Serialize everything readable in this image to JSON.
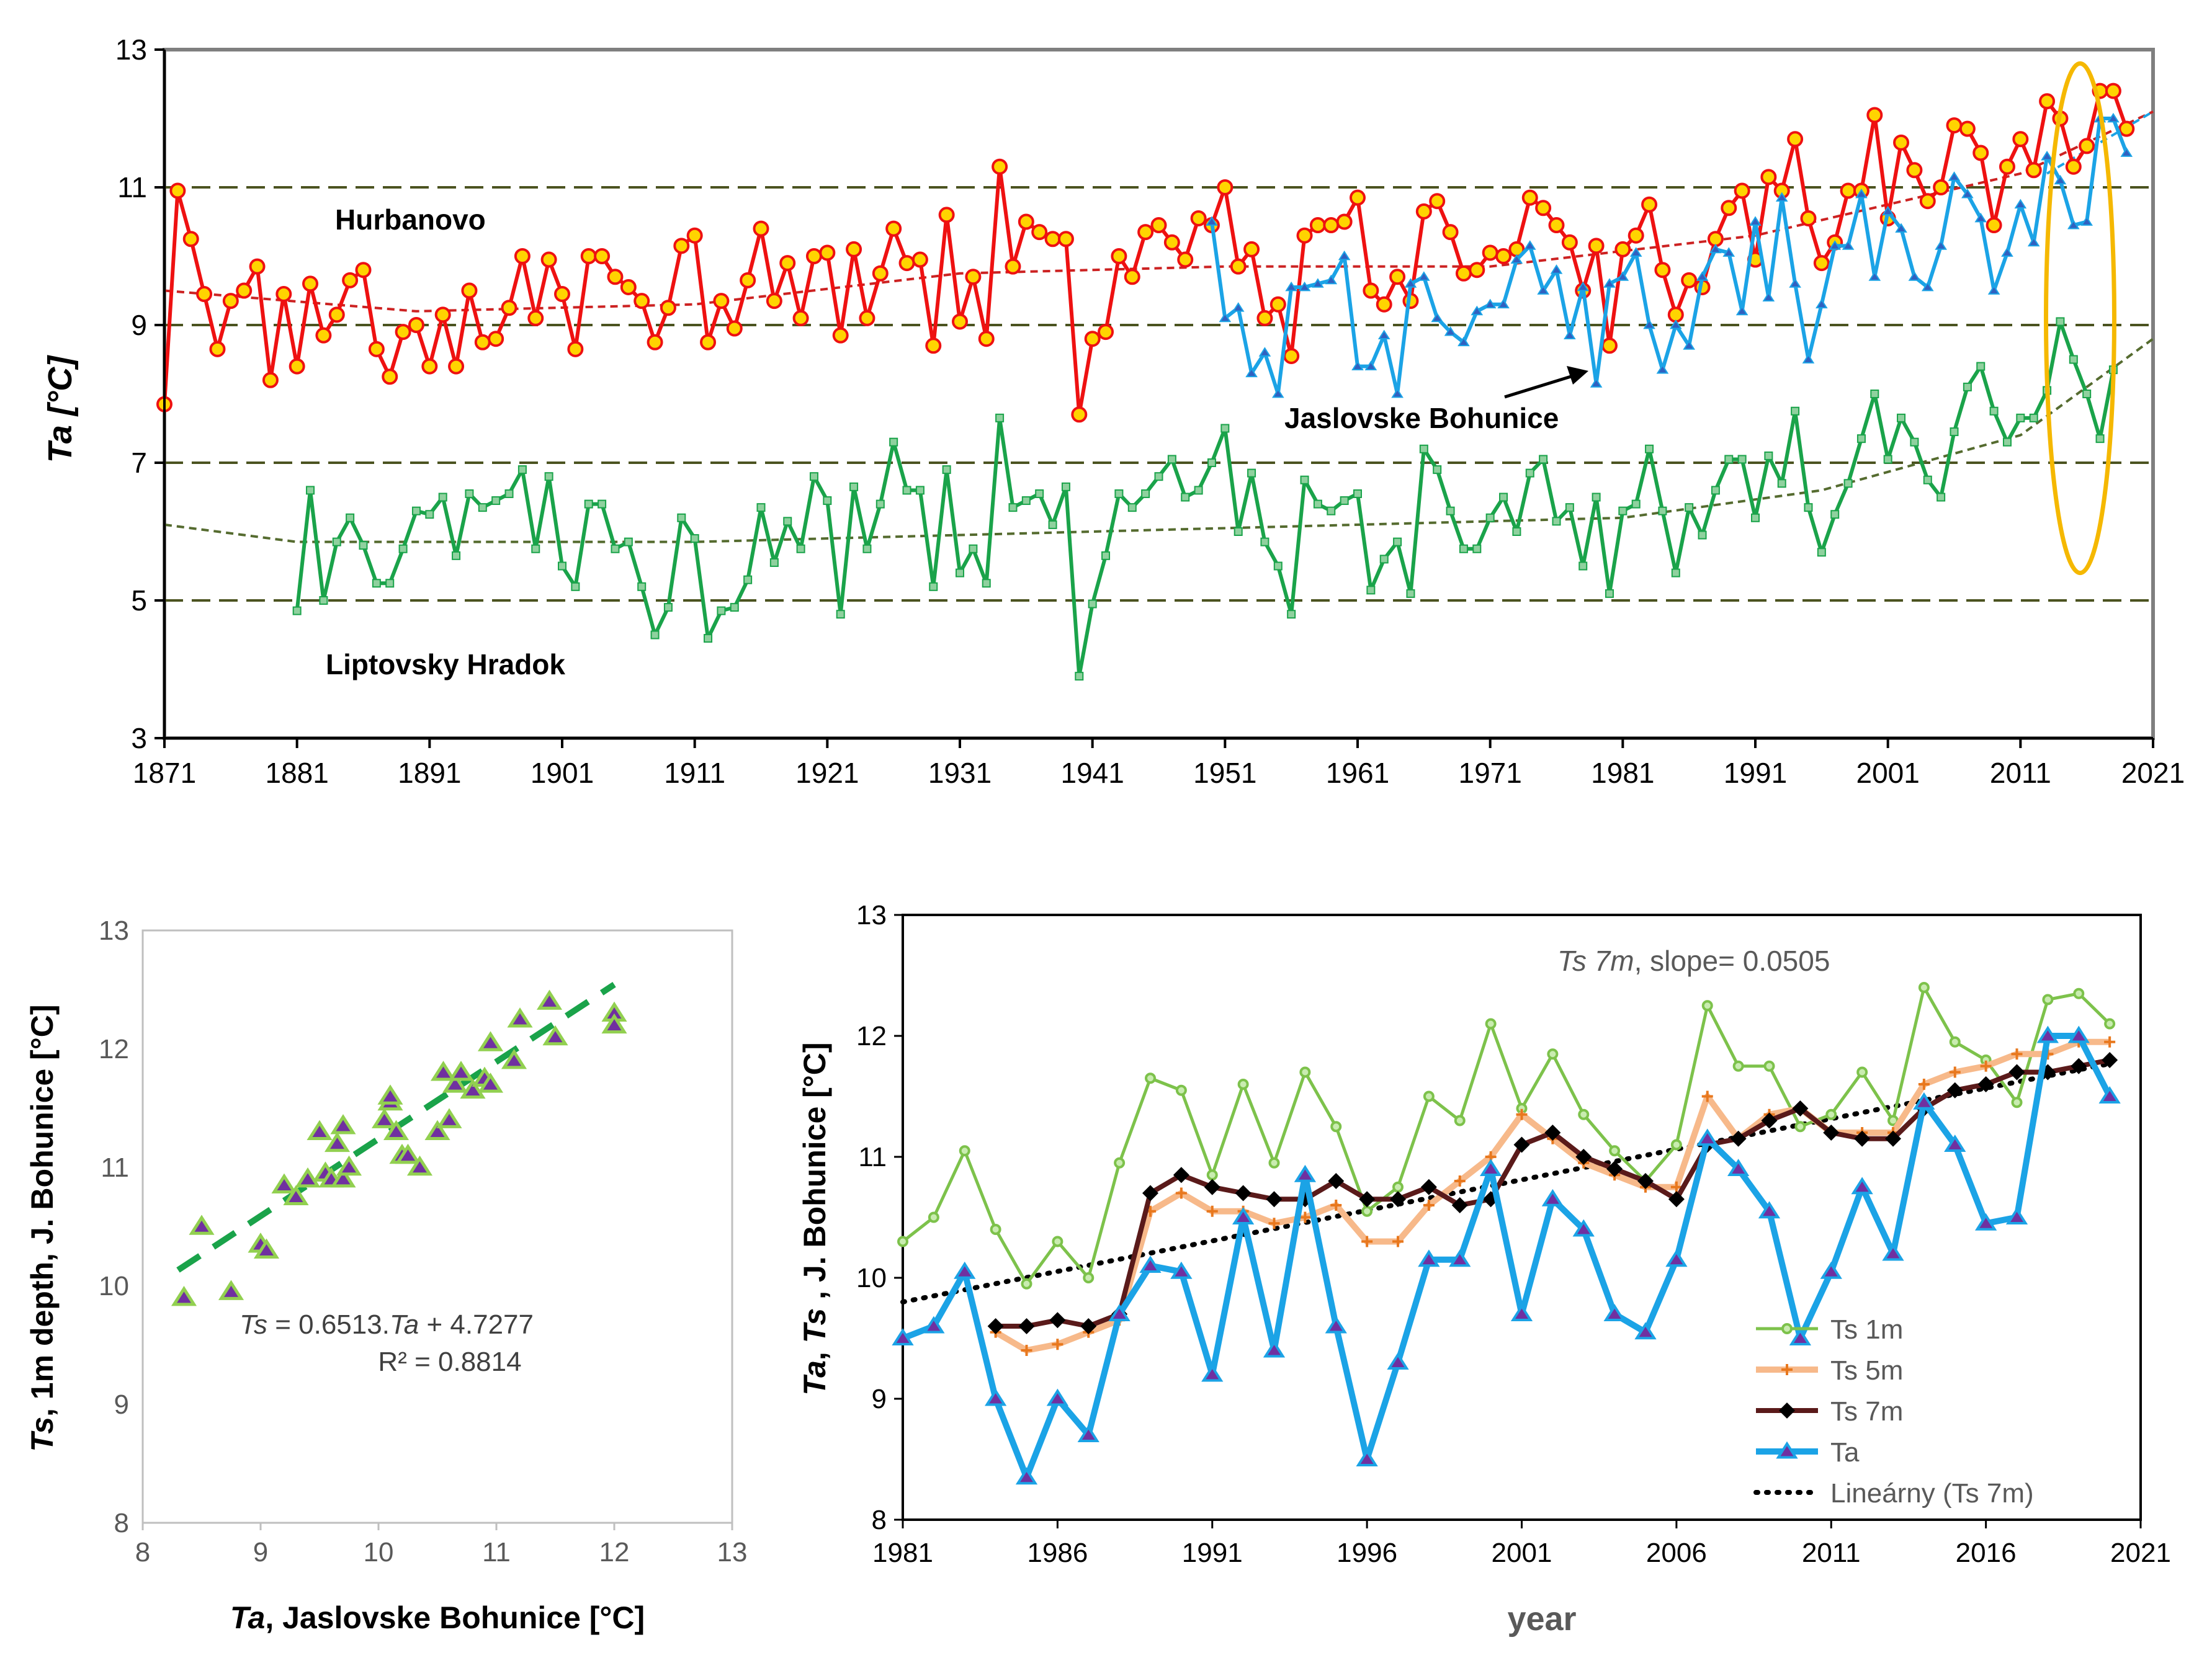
{
  "chart_data": [
    {
      "type": "line",
      "ylabel": "Ta [°C]",
      "xlim": [
        1871,
        2021
      ],
      "ylim": [
        3,
        13
      ],
      "x_ticks": [
        "1871",
        "1881",
        "1891",
        "1901",
        "1911",
        "1921",
        "1931",
        "1941",
        "1951",
        "1961",
        "1971",
        "1981",
        "1991",
        "2001",
        "2011",
        "2021"
      ],
      "y_ticks": [
        "3",
        "5",
        "7",
        "9",
        "11",
        "13"
      ],
      "reference_lines": [
        5,
        7,
        9,
        11
      ],
      "annotations": {
        "hurbanovo": "Hurbanovo",
        "liptovsky": "Liptovsky Hradok",
        "jaslovske": "Jaslovske Bohunice"
      },
      "series": [
        {
          "name": "Hurbanovo",
          "color": "#ee1111",
          "marker_fill": "#ffd400",
          "start_year": 1871,
          "values": [
            7.85,
            10.95,
            10.25,
            9.45,
            8.65,
            9.35,
            9.5,
            9.85,
            8.2,
            9.45,
            8.4,
            9.6,
            8.85,
            9.15,
            9.65,
            9.8,
            8.65,
            8.25,
            8.9,
            9.0,
            8.4,
            9.15,
            8.4,
            9.5,
            8.75,
            8.8,
            9.25,
            10.0,
            9.1,
            9.95,
            9.45,
            8.65,
            10.0,
            10.0,
            9.7,
            9.55,
            9.35,
            8.75,
            9.25,
            10.15,
            10.3,
            8.75,
            9.35,
            8.95,
            9.65,
            10.4,
            9.35,
            9.9,
            9.1,
            10.0,
            10.05,
            8.85,
            10.1,
            9.1,
            9.75,
            10.4,
            9.9,
            9.95,
            8.7,
            10.6,
            9.05,
            9.7,
            8.8,
            11.3,
            9.85,
            10.5,
            10.35,
            10.25,
            10.25,
            7.7,
            8.8,
            8.9,
            10.0,
            9.7,
            10.35,
            10.45,
            10.2,
            9.95,
            10.55,
            10.45,
            11.0,
            9.85,
            10.1,
            9.1,
            9.3,
            8.55,
            10.3,
            10.45,
            10.45,
            10.5,
            10.85,
            9.5,
            9.3,
            9.7,
            9.35,
            10.65,
            10.8,
            10.35,
            9.75,
            9.8,
            10.05,
            10.0,
            10.1,
            10.85,
            10.7,
            10.45,
            10.2,
            9.5,
            10.15,
            8.7,
            10.1,
            10.3,
            10.75,
            9.8,
            9.15,
            9.65,
            9.55,
            10.25,
            10.7,
            10.95,
            9.95,
            11.15,
            10.95,
            11.7,
            10.55,
            9.9,
            10.2,
            10.95,
            10.95,
            12.05,
            10.55,
            11.65,
            11.25,
            10.8,
            11.0,
            11.9,
            11.85,
            11.5,
            10.45,
            11.3,
            11.7,
            11.25,
            12.25,
            12.0,
            11.3,
            11.6,
            12.4,
            12.4,
            11.85
          ]
        },
        {
          "name": "Jaslovske Bohunice",
          "color": "#1ba3e6",
          "marker_fill": "#3060c0",
          "start_year": 1950,
          "values": [
            10.5,
            9.1,
            9.25,
            8.3,
            8.6,
            8.0,
            9.55,
            9.55,
            9.6,
            9.65,
            10.0,
            8.4,
            8.4,
            8.85,
            8.0,
            9.6,
            9.7,
            9.1,
            8.9,
            8.75,
            9.2,
            9.3,
            9.3,
            9.95,
            10.15,
            9.5,
            9.8,
            8.85,
            9.55,
            8.15,
            9.6,
            9.7,
            10.05,
            9.0,
            8.35,
            9.0,
            8.7,
            9.7,
            10.1,
            10.05,
            9.2,
            10.5,
            9.4,
            10.85,
            9.6,
            8.5,
            9.3,
            10.15,
            10.15,
            10.9,
            9.7,
            10.65,
            10.4,
            9.7,
            9.55,
            10.15,
            11.15,
            10.9,
            10.55,
            9.5,
            10.05,
            10.75,
            10.2,
            11.45,
            11.1,
            10.45,
            10.5,
            12.0,
            12.0,
            11.5
          ]
        },
        {
          "name": "Liptovsky Hradok",
          "color": "#1aa34a",
          "marker_fill": "#1aa34a",
          "start_year": 1881,
          "values": [
            4.85,
            6.6,
            5.0,
            5.85,
            6.2,
            5.8,
            5.25,
            5.25,
            5.75,
            6.3,
            6.25,
            6.5,
            5.65,
            6.55,
            6.35,
            6.45,
            6.55,
            6.9,
            5.75,
            6.8,
            5.5,
            5.2,
            6.4,
            6.4,
            5.75,
            5.85,
            5.2,
            4.5,
            4.9,
            6.2,
            5.9,
            4.45,
            4.85,
            4.9,
            5.3,
            6.35,
            5.55,
            6.15,
            5.75,
            6.8,
            6.45,
            4.8,
            6.65,
            5.75,
            6.4,
            7.3,
            6.6,
            6.6,
            5.2,
            6.9,
            5.4,
            5.75,
            5.25,
            7.65,
            6.35,
            6.45,
            6.55,
            6.1,
            6.65,
            3.9,
            4.95,
            5.65,
            6.55,
            6.35,
            6.55,
            6.8,
            7.05,
            6.5,
            6.6,
            7.0,
            7.5,
            6.0,
            6.85,
            5.85,
            5.5,
            4.8,
            6.75,
            6.4,
            6.3,
            6.45,
            6.55,
            5.15,
            5.6,
            5.85,
            5.1,
            7.2,
            6.9,
            6.3,
            5.75,
            5.75,
            6.2,
            6.5,
            6.0,
            6.85,
            7.05,
            6.15,
            6.35,
            5.5,
            6.5,
            5.1,
            6.3,
            6.4,
            7.2,
            6.3,
            5.4,
            6.35,
            5.95,
            6.6,
            7.05,
            7.05,
            6.2,
            7.1,
            6.7,
            7.75,
            6.35,
            5.7,
            6.25,
            6.7,
            7.35,
            8.0,
            7.05,
            7.65,
            7.3,
            6.75,
            6.5,
            7.45,
            8.1,
            8.4,
            7.75,
            7.3,
            7.65,
            7.65,
            8.05,
            9.05,
            8.5,
            8.0,
            7.35,
            8.35
          ]
        }
      ],
      "trend_lines": [
        {
          "name": "Hurbanovo trend",
          "color": "#cc2222",
          "x": [
            1871,
            1890,
            1911,
            1931,
            1951,
            1971,
            1991,
            2011,
            2021
          ],
          "y": [
            9.5,
            9.2,
            9.3,
            9.75,
            9.85,
            9.85,
            10.3,
            11.2,
            12.1
          ]
        },
        {
          "name": "Jaslovske trend",
          "color": "#1ba3e6",
          "x": [
            2013,
            2021
          ],
          "y": [
            11.2,
            12.1
          ]
        },
        {
          "name": "Liptovsky trend",
          "color": "#556b2f",
          "x": [
            1871,
            1881,
            1911,
            1951,
            1981,
            1996,
            2011,
            2021
          ],
          "y": [
            6.1,
            5.85,
            5.85,
            6.05,
            6.2,
            6.6,
            7.4,
            8.8
          ]
        }
      ],
      "highlight": {
        "shape": "ellipse",
        "color": "#f5b800",
        "x_center_year": 2015.5,
        "y_range": [
          5.4,
          12.8
        ]
      }
    },
    {
      "type": "scatter",
      "xlabel_italic": "Ta",
      "xlabel_rest": ", Jaslovske Bohunice [°C]",
      "ylabel_italic": "Ts",
      "ylabel_rest": ", 1m depth, J. Bohunice [°C]",
      "xlim": [
        8,
        13
      ],
      "ylim": [
        8,
        13
      ],
      "x_ticks": [
        "8",
        "9",
        "10",
        "11",
        "12",
        "13"
      ],
      "y_ticks": [
        "8",
        "9",
        "10",
        "11",
        "12",
        "13"
      ],
      "equation_italic_a": "Ts",
      "equation_mid": " = 0.6513.",
      "equation_italic_b": "Ta",
      "equation_end": "  + 4.7277",
      "r2": "R² = 0.8814",
      "points": [
        [
          8.35,
          9.9
        ],
        [
          8.5,
          10.5
        ],
        [
          8.75,
          9.95
        ],
        [
          9.0,
          10.35
        ],
        [
          9.05,
          10.3
        ],
        [
          9.2,
          10.85
        ],
        [
          9.3,
          10.75
        ],
        [
          9.4,
          10.9
        ],
        [
          9.5,
          11.3
        ],
        [
          9.55,
          10.95
        ],
        [
          9.6,
          10.9
        ],
        [
          9.65,
          11.2
        ],
        [
          9.7,
          11.35
        ],
        [
          9.7,
          10.9
        ],
        [
          9.75,
          11.0
        ],
        [
          10.05,
          11.4
        ],
        [
          10.1,
          11.55
        ],
        [
          10.1,
          11.6
        ],
        [
          10.15,
          11.3
        ],
        [
          10.2,
          11.1
        ],
        [
          10.25,
          11.1
        ],
        [
          10.35,
          11.0
        ],
        [
          10.5,
          11.3
        ],
        [
          10.55,
          11.8
        ],
        [
          10.6,
          11.4
        ],
        [
          10.65,
          11.7
        ],
        [
          10.7,
          11.8
        ],
        [
          10.8,
          11.65
        ],
        [
          10.9,
          11.75
        ],
        [
          10.95,
          11.7
        ],
        [
          10.95,
          12.05
        ],
        [
          11.15,
          11.9
        ],
        [
          11.2,
          12.25
        ],
        [
          11.45,
          12.4
        ],
        [
          11.5,
          12.1
        ],
        [
          12.0,
          12.3
        ],
        [
          12.0,
          12.2
        ]
      ],
      "trend": {
        "slope": 0.6513,
        "intercept": 4.7277,
        "x_range": [
          8.3,
          12.0
        ],
        "color": "#1aa34a"
      }
    },
    {
      "type": "line",
      "xlabel": "year",
      "ylabel_italic_a": "Ta",
      "ylabel_mid": ", ",
      "ylabel_italic_b": "Ts",
      "ylabel_rest": " , J. Bohunice [°C]",
      "annotation_italic": "Ts 7m",
      "annotation_rest": ", slope=  0.0505",
      "xlim": [
        1981,
        2021
      ],
      "ylim": [
        8,
        13
      ],
      "x_ticks": [
        "1981",
        "1986",
        "1991",
        "1996",
        "2001",
        "2006",
        "2011",
        "2016",
        "2021"
      ],
      "y_ticks": [
        "8",
        "9",
        "10",
        "11",
        "12",
        "13"
      ],
      "legend": [
        "Ts 1m",
        "Ts 5m",
        "Ts 7m",
        "Ta",
        "Lineárny (Ts 7m)"
      ],
      "series": [
        {
          "name": "Ts 1m",
          "color": "#7dc24b",
          "start_year": 1981,
          "values": [
            10.3,
            10.5,
            11.05,
            10.4,
            9.95,
            10.3,
            10.0,
            10.95,
            11.65,
            11.55,
            10.85,
            11.6,
            10.95,
            11.7,
            11.25,
            10.55,
            10.75,
            11.5,
            11.3,
            12.1,
            11.4,
            11.85,
            11.35,
            11.05,
            10.8,
            11.1,
            12.25,
            11.75,
            11.75,
            11.25,
            11.35,
            11.7,
            11.3,
            12.4,
            11.95,
            11.8,
            11.45,
            12.3,
            12.35,
            12.1
          ]
        },
        {
          "name": "Ts 5m",
          "color": "#f7b98a",
          "start_year": 1984,
          "values": [
            9.55,
            9.4,
            9.45,
            9.55,
            9.65,
            10.55,
            10.7,
            10.55,
            10.55,
            10.45,
            10.5,
            10.6,
            10.3,
            10.3,
            10.6,
            10.8,
            11.0,
            11.35,
            11.15,
            10.95,
            10.85,
            10.75,
            10.75,
            11.5,
            11.15,
            11.35,
            11.4,
            11.2,
            11.2,
            11.2,
            11.6,
            11.7,
            11.75,
            11.85,
            11.85,
            11.95,
            11.95
          ]
        },
        {
          "name": "Ts 7m",
          "color": "#5a1a1a",
          "start_year": 1984,
          "values": [
            9.6,
            9.6,
            9.65,
            9.6,
            9.7,
            10.7,
            10.85,
            10.75,
            10.7,
            10.65,
            10.65,
            10.8,
            10.65,
            10.65,
            10.75,
            10.6,
            10.65,
            11.1,
            11.2,
            11.0,
            10.9,
            10.8,
            10.65,
            11.1,
            11.15,
            11.3,
            11.4,
            11.2,
            11.15,
            11.15,
            11.4,
            11.55,
            11.6,
            11.7,
            11.7,
            11.75,
            11.8
          ]
        },
        {
          "name": "Ta",
          "color": "#1ba3e6",
          "start_year": 1981,
          "values": [
            9.5,
            9.6,
            10.05,
            9.0,
            8.35,
            9.0,
            8.7,
            9.7,
            10.1,
            10.05,
            9.2,
            10.5,
            9.4,
            10.85,
            9.6,
            8.5,
            9.3,
            10.15,
            10.15,
            10.9,
            9.7,
            10.65,
            10.4,
            9.7,
            9.55,
            10.15,
            11.15,
            10.9,
            10.55,
            9.5,
            10.05,
            10.75,
            10.2,
            11.45,
            11.1,
            10.45,
            10.5,
            12.0,
            12.0,
            11.5
          ]
        }
      ],
      "trend": {
        "name": "Lineárny (Ts 7m)",
        "x": [
          1981,
          2020
        ],
        "y": [
          9.8,
          11.77
        ],
        "color": "#000000"
      }
    }
  ]
}
